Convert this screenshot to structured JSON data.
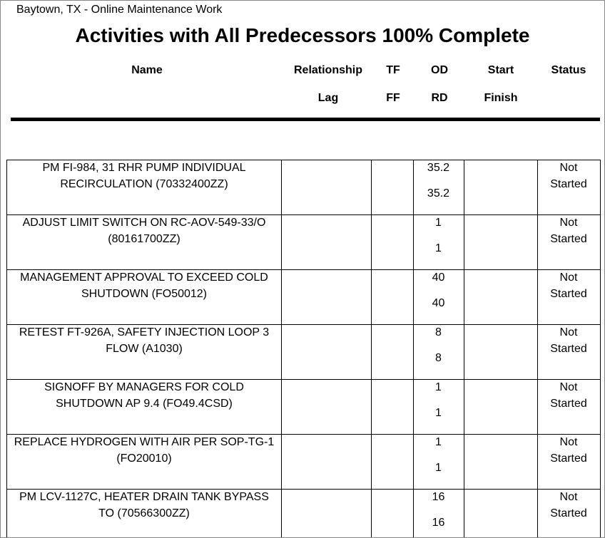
{
  "header": {
    "site": "Baytown, TX - Online Maintenance Work",
    "title": "Activities with All Predecessors 100% Complete"
  },
  "columns": [
    {
      "top": "Name",
      "bottom": null
    },
    {
      "top": "Relationship",
      "bottom": "Lag"
    },
    {
      "top": "TF",
      "bottom": "FF"
    },
    {
      "top": "OD",
      "bottom": "RD"
    },
    {
      "top": "Start",
      "bottom": "Finish"
    },
    {
      "top": "Status",
      "bottom": null
    }
  ],
  "rows": [
    {
      "name": "PM FI-984, 31 RHR PUMP INDIVIDUAL RECIRCULATION (70332400ZZ)",
      "od": "35.2",
      "rd": "35.2",
      "status": "Not Started"
    },
    {
      "name": "ADJUST LIMIT SWITCH ON RC-AOV-549-33/O (80161700ZZ)",
      "od": "1",
      "rd": "1",
      "status": "Not Started"
    },
    {
      "name": "MANAGEMENT APPROVAL TO EXCEED COLD SHUTDOWN (FO50012)",
      "od": "40",
      "rd": "40",
      "status": "Not Started"
    },
    {
      "name": "RETEST FT-926A, SAFETY INJECTION LOOP 3 FLOW (A1030)",
      "od": "8",
      "rd": "8",
      "status": "Not Started"
    },
    {
      "name": "SIGNOFF BY MANAGERS FOR COLD SHUTDOWN  AP 9.4 (FO49.4CSD)",
      "od": "1",
      "rd": "1",
      "status": "Not Started"
    },
    {
      "name": "REPLACE HYDROGEN WITH AIR PER SOP-TG-1 (FO20010)",
      "od": "1",
      "rd": "1",
      "status": "Not Started"
    },
    {
      "name": "PM LCV-1127C, HEATER DRAIN TANK BYPASS TO (70566300ZZ)",
      "od": "16",
      "rd": "16",
      "status": "Not Started"
    }
  ]
}
